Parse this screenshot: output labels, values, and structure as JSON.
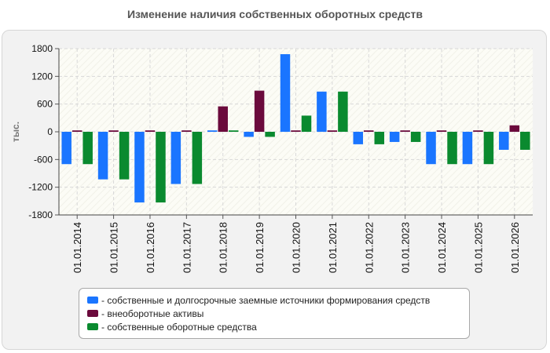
{
  "chart_data": {
    "type": "bar",
    "title": "Изменение наличия собственных оборотных средств",
    "ylabel": "тыс.",
    "xlabel": "",
    "ylim": [
      -1800,
      1800
    ],
    "yticks": [
      "1800",
      "1200",
      "600",
      "0",
      "-600",
      "-1200",
      "-1800"
    ],
    "categories": [
      "01.01.2014",
      "01.01.2015",
      "01.01.2016",
      "01.01.2017",
      "01.01.2018",
      "01.01.2019",
      "01.01.2020",
      "01.01.2021",
      "01.01.2022",
      "01.01.2023",
      "01.01.2024",
      "01.01.2025",
      "01.01.2026"
    ],
    "series": [
      {
        "name": "собственные и долгосрочные заемные источники формирования средств",
        "color": "#1a75ff",
        "values": [
          -700,
          -1030,
          -1530,
          -1130,
          30,
          -110,
          1680,
          870,
          -270,
          -220,
          -700,
          -700,
          -390
        ]
      },
      {
        "name": "внеоборотные активы",
        "color": "#6b0a3c",
        "values": [
          30,
          30,
          30,
          30,
          550,
          890,
          30,
          30,
          30,
          30,
          30,
          30,
          140
        ]
      },
      {
        "name": "собственные оборотные средства",
        "color": "#0a8a2f",
        "values": [
          -700,
          -1030,
          -1530,
          -1130,
          30,
          -110,
          350,
          870,
          -270,
          -220,
          -700,
          -700,
          -390
        ]
      }
    ],
    "grid": true,
    "legend_position": "bottom"
  }
}
